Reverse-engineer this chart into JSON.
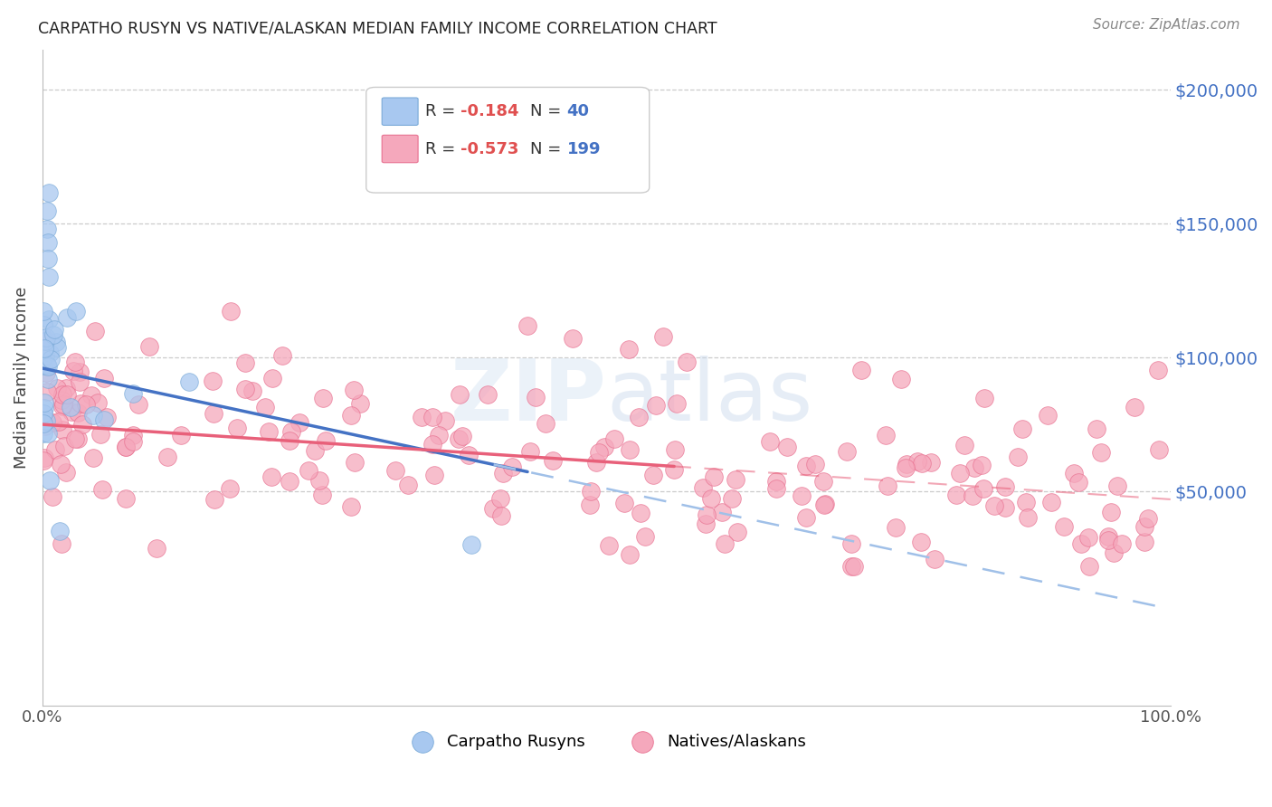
{
  "title": "CARPATHO RUSYN VS NATIVE/ALASKAN MEDIAN FAMILY INCOME CORRELATION CHART",
  "source": "Source: ZipAtlas.com",
  "ylabel": "Median Family Income",
  "right_ytick_labels": [
    "$200,000",
    "$150,000",
    "$100,000",
    "$50,000"
  ],
  "right_ytick_values": [
    200000,
    150000,
    100000,
    50000
  ],
  "blue_color": "#A8C8F0",
  "pink_color": "#F5A8BC",
  "blue_edge_color": "#7AAAD8",
  "pink_edge_color": "#E87090",
  "blue_line_color": "#4472C4",
  "pink_line_color": "#E8607A",
  "blue_dash_color": "#A0C0E8",
  "xmin": 0.0,
  "xmax": 1.0,
  "ymin": -30000,
  "ymax": 215000,
  "watermark": "ZIPAtlas",
  "seed": 17
}
